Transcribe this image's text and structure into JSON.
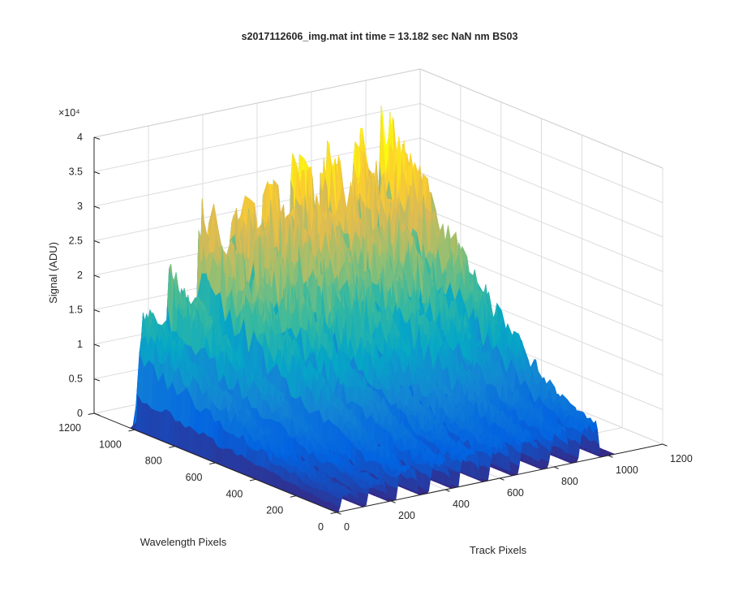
{
  "window": {
    "background": "#ffffff"
  },
  "chart_data": {
    "type": "surface",
    "title": "s2017112606_img.mat int time = 13.182 sec  NaN nm BS03",
    "xlabel": "Track Pixels",
    "ylabel": "Wavelength Pixels",
    "zlabel": "Signal (ADU)",
    "z_exponent_label": "×10⁴",
    "xlim": [
      0,
      1200
    ],
    "ylim": [
      0,
      1200
    ],
    "zlim": [
      0,
      40000
    ],
    "x_ticks": [
      "0",
      "200",
      "400",
      "600",
      "800",
      "1000",
      "1200"
    ],
    "y_ticks": [
      "0",
      "200",
      "400",
      "600",
      "800",
      "1000",
      "1200"
    ],
    "z_ticks": [
      "0",
      "0.5",
      "1",
      "1.5",
      "2",
      "2.5",
      "3",
      "3.5",
      "4"
    ],
    "grid": true,
    "colormap": "parula",
    "colormap_stops": [
      "#352a87",
      "#0363e1",
      "#1485d4",
      "#06a7c6",
      "#38b99e",
      "#92bf73",
      "#d9ba56",
      "#fcce2e",
      "#f9fb0e"
    ],
    "data_extent": {
      "track_pixels": [
        0,
        1024
      ],
      "wavelength_pixels": [
        0,
        1024
      ]
    },
    "track_peaks": [
      {
        "track": 50,
        "peak_signal": 15000
      },
      {
        "track": 150,
        "peak_signal": 19500
      },
      {
        "track": 260,
        "peak_signal": 27000
      },
      {
        "track": 380,
        "peak_signal": 28500
      },
      {
        "track": 490,
        "peak_signal": 29500
      },
      {
        "track": 600,
        "peak_signal": 30500
      },
      {
        "track": 710,
        "peak_signal": 31500
      },
      {
        "track": 820,
        "peak_signal": 31500
      },
      {
        "track": 930,
        "peak_signal": 34000
      }
    ]
  }
}
